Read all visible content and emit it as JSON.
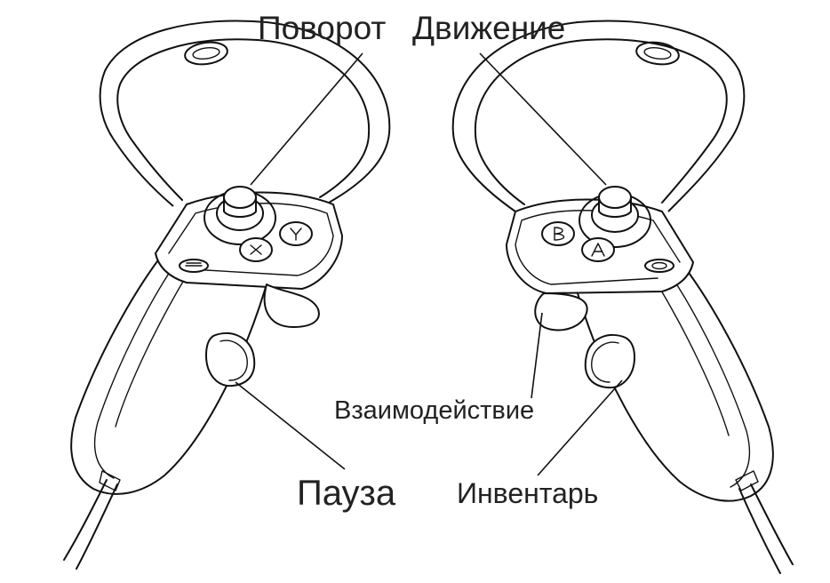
{
  "labels": {
    "rotate": "Поворот",
    "move": "Движение",
    "interact": "Взаимодействие",
    "pause": "Пауза",
    "inventory": "Инвентарь"
  },
  "colors": {
    "stroke": "#111111",
    "background": "#ffffff",
    "text": "#222222"
  }
}
